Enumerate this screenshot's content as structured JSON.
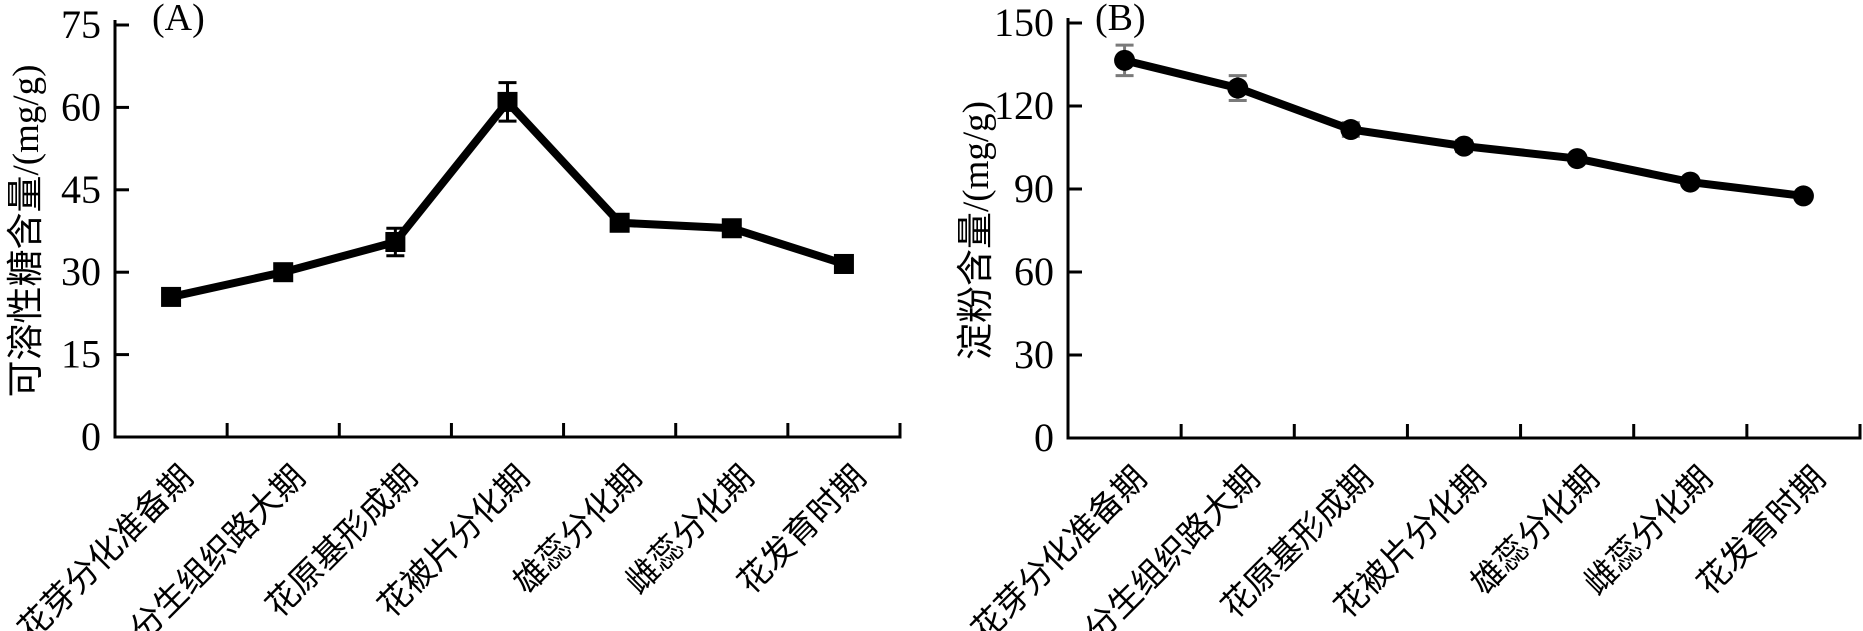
{
  "figure": {
    "background": "#ffffff",
    "line_color": "#000000",
    "axis_color": "#000000"
  },
  "chart_data": [
    {
      "id": "A",
      "type": "line",
      "title": "(A)",
      "ylabel": "可溶性糖含量/(mg/g)",
      "xlabel": "",
      "categories": [
        "花芽分化准备期",
        "分生组织路大期",
        "花原基形成期",
        "花被片分化期",
        "雄蕊分化期",
        "雌蕊分化期",
        "花发育时期"
      ],
      "yticks": [
        0,
        15,
        30,
        45,
        60,
        75
      ],
      "ylim": [
        0,
        75
      ],
      "grid": false,
      "legend_position": "none",
      "series": [
        {
          "name": "可溶性糖含量",
          "values": [
            25.5,
            30,
            35.5,
            61,
            39,
            38,
            31.5
          ],
          "errors": [
            1.2,
            1.5,
            2.5,
            3.5,
            0.8,
            0.8,
            1.5
          ],
          "marker": "square",
          "color": "#000000",
          "error_color": "#000000"
        }
      ]
    },
    {
      "id": "B",
      "type": "line",
      "title": "(B)",
      "ylabel": "淀粉含量/(mg/g)",
      "xlabel": "",
      "categories": [
        "花芽分化准备期",
        "分生组织路大期",
        "花原基形成期",
        "花被片分化期",
        "雄蕊分化期",
        "雌蕊分化期",
        "花发育时期"
      ],
      "yticks": [
        0,
        30,
        60,
        90,
        120,
        150
      ],
      "ylim": [
        0,
        150
      ],
      "grid": false,
      "legend_position": "none",
      "series": [
        {
          "name": "淀粉含量",
          "values": [
            136.5,
            126.5,
            111.5,
            105.5,
            101,
            92.5,
            87.5
          ],
          "errors": [
            5.5,
            4.5,
            2.5,
            2,
            1.2,
            1,
            1
          ],
          "marker": "circle",
          "color": "#000000",
          "error_color": "#7a7a7a"
        }
      ]
    }
  ]
}
